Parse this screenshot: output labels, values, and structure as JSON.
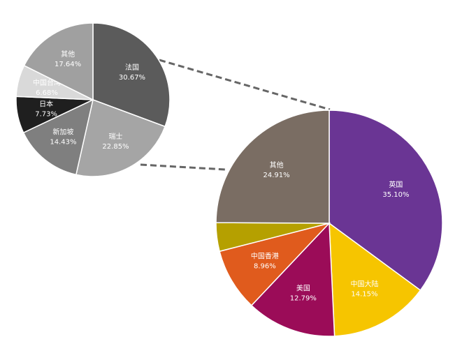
{
  "chart_data": [
    {
      "type": "pie",
      "categories": [
        "法国",
        "瑞士",
        "新加坡",
        "日本",
        "中国台湾",
        "其他"
      ],
      "values": [
        30.67,
        22.85,
        14.43,
        7.73,
        6.68,
        17.64
      ],
      "value_labels": [
        "30.67%",
        "22.85%",
        "14.43%",
        "7.73%",
        "6.68%",
        "17.64%"
      ],
      "colors": [
        "#5b5b5b",
        "#a5a5a5",
        "#7f7f7f",
        "#1f1f1f",
        "#d9d9d9",
        "#a0a0a0"
      ]
    },
    {
      "type": "pie",
      "categories": [
        "英国",
        "中国大陆",
        "美国",
        "中国香港",
        null,
        "其他"
      ],
      "values": [
        35.1,
        14.15,
        12.79,
        8.96,
        4.09,
        24.91
      ],
      "value_labels": [
        "35.10%",
        "14.15%",
        "12.79%",
        "8.96%",
        null,
        "24.91%"
      ],
      "colors": [
        "#6a3594",
        "#f6c500",
        "#9b0c58",
        "#e05b1d",
        "#b5a000",
        "#7a6d63"
      ]
    }
  ]
}
